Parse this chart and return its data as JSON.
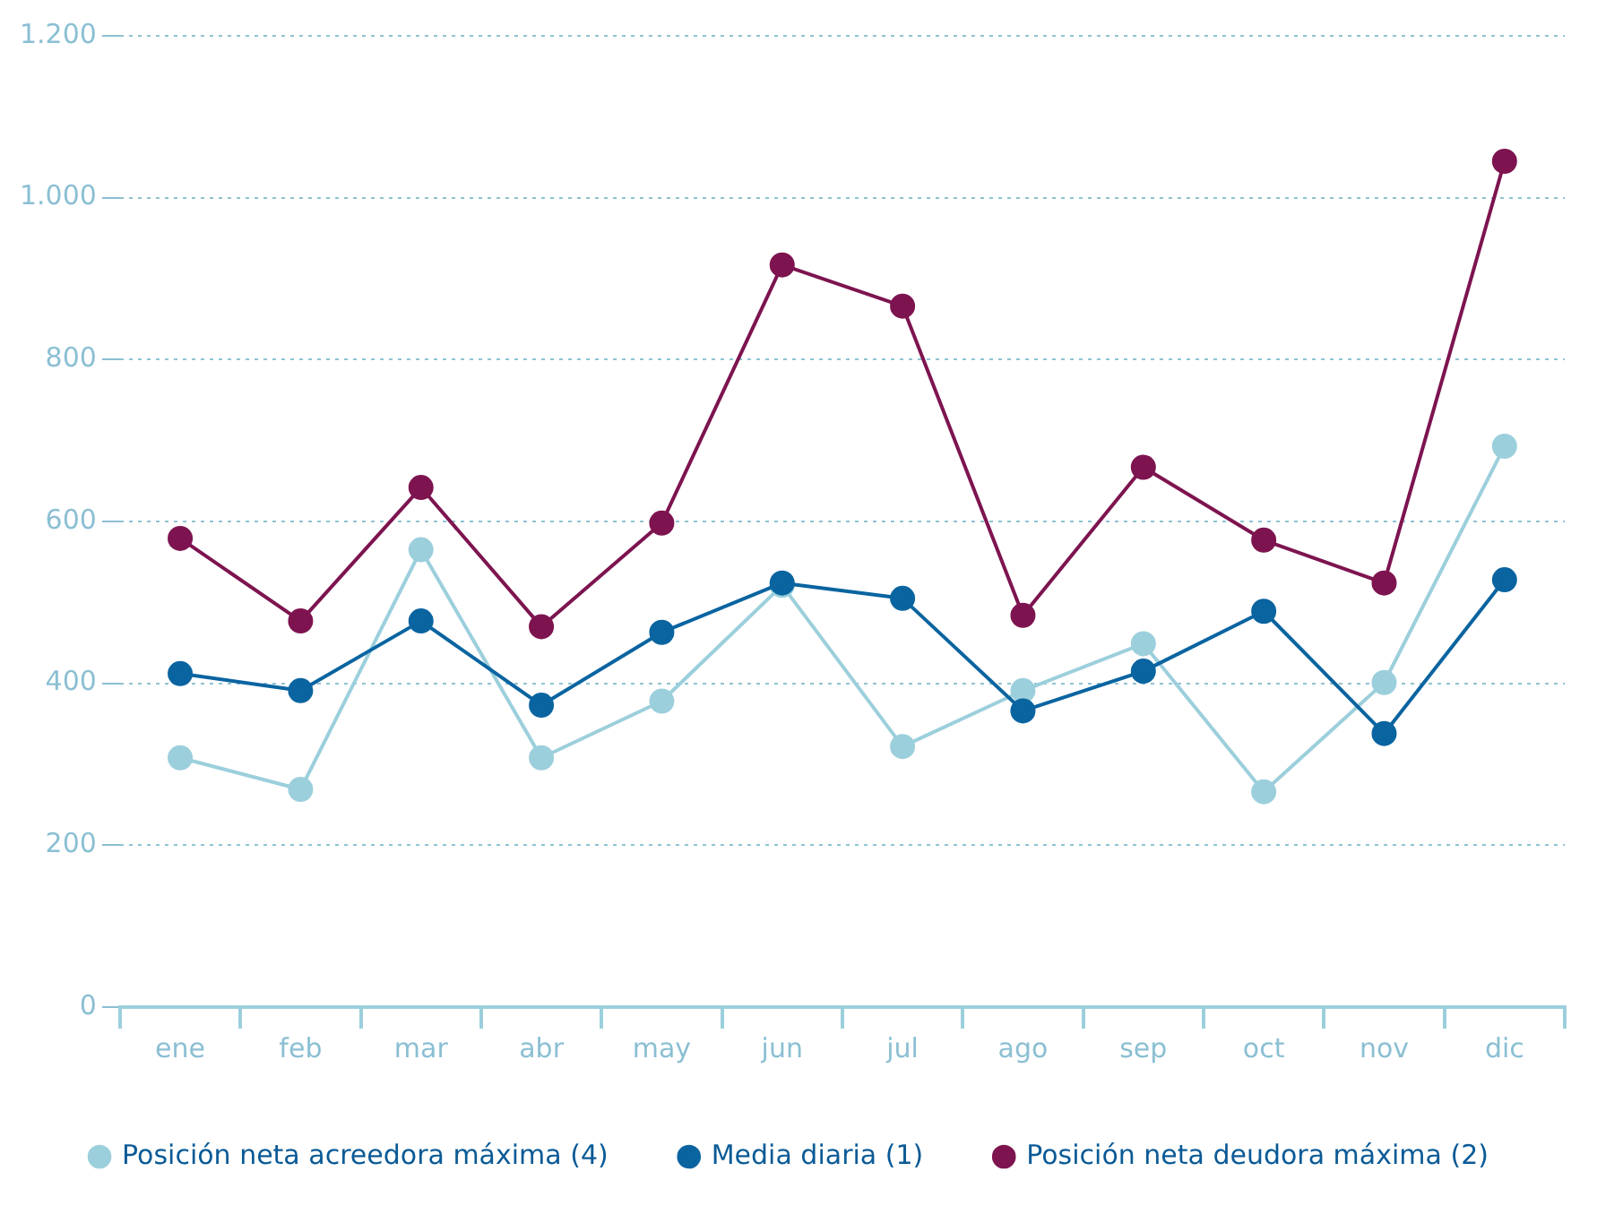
{
  "chart_data": {
    "type": "line",
    "categories": [
      "ene",
      "feb",
      "mar",
      "abr",
      "may",
      "jun",
      "jul",
      "ago",
      "sep",
      "oct",
      "nov",
      "dic"
    ],
    "series": [
      {
        "name": "Posición neta acreedora máxima (4)",
        "color": "#9ccfdc",
        "values": [
          308,
          269,
          565,
          308,
          378,
          521,
          322,
          391,
          449,
          266,
          401,
          693
        ]
      },
      {
        "name": "Media diaria (1)",
        "color": "#0a64a0",
        "values": [
          412,
          391,
          477,
          373,
          463,
          524,
          505,
          366,
          415,
          489,
          338,
          528
        ]
      },
      {
        "name": "Posición neta deudora máxima (2)",
        "color": "#7d1450",
        "values": [
          579,
          477,
          642,
          470,
          598,
          917,
          866,
          484,
          667,
          577,
          524,
          1045
        ]
      }
    ],
    "ylim": [
      0,
      1200
    ],
    "yticks": [
      0,
      200,
      400,
      600,
      800,
      {
        "value": 1000,
        "label": "1.000"
      },
      {
        "value": 1200,
        "label": "1.200"
      }
    ],
    "grid": "y",
    "legend": "bottom",
    "marker": "circle",
    "line_style": "solid"
  }
}
